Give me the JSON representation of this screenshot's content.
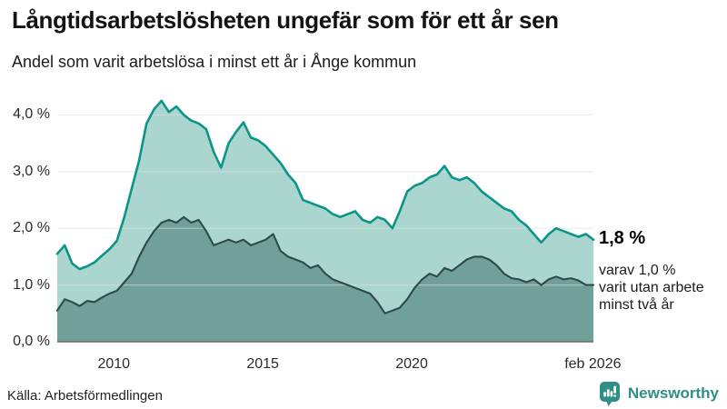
{
  "header": {
    "title": "Långtidsarbetslösheten ungefär som för ett år sen",
    "subtitle": "Andel som varit arbetslösa i minst ett år i Ånge kommun"
  },
  "annotation": {
    "value_label": "1,8 %",
    "sub_lines": [
      "varav 1,0 %",
      "varit utan arbete",
      "minst två år"
    ]
  },
  "footer": {
    "source": "Källa: Arbetsförmedlingen",
    "brand": "Newsworthy"
  },
  "colors": {
    "line_total": "#0d9488",
    "fill_total": "#aad6cf",
    "line_two_years": "#2e4b47",
    "fill_two_years": "#719f99",
    "gridline": "#dedede",
    "baseline": "#6b6b6b",
    "brand_teal": "#2f8f87",
    "text": "#1c1c1c"
  },
  "chart_data": {
    "type": "area",
    "title": "Långtidsarbetslösheten ungefär som för ett år sen",
    "subtitle": "Andel som varit arbetslösa i minst ett år i Ånge kommun",
    "x_unit": "decimal_year",
    "ylim": [
      0,
      4.36
    ],
    "xlim": [
      2008.1,
      2026.1
    ],
    "grid": "horizontal",
    "legend": "none",
    "y_ticks": [
      {
        "v": 0,
        "label": "0,0 %"
      },
      {
        "v": 1,
        "label": "1,0 %"
      },
      {
        "v": 2,
        "label": "2,0 %"
      },
      {
        "v": 3,
        "label": "3,0 %"
      },
      {
        "v": 4,
        "label": "4,0 %"
      }
    ],
    "x_ticks": [
      {
        "v": 2010,
        "label": "2010"
      },
      {
        "v": 2015,
        "label": "2015"
      },
      {
        "v": 2020,
        "label": "2020"
      },
      {
        "v": 2026.08,
        "label": "feb 2026"
      }
    ],
    "x": [
      2008.1,
      2008.35,
      2008.6,
      2008.85,
      2009.1,
      2009.35,
      2009.6,
      2009.85,
      2010.1,
      2010.35,
      2010.6,
      2010.85,
      2011.1,
      2011.35,
      2011.6,
      2011.85,
      2012.1,
      2012.35,
      2012.6,
      2012.85,
      2013.1,
      2013.35,
      2013.6,
      2013.85,
      2014.1,
      2014.35,
      2014.6,
      2014.85,
      2015.1,
      2015.35,
      2015.6,
      2015.85,
      2016.1,
      2016.35,
      2016.6,
      2016.85,
      2017.1,
      2017.35,
      2017.6,
      2017.85,
      2018.1,
      2018.35,
      2018.6,
      2018.85,
      2019.1,
      2019.35,
      2019.6,
      2019.85,
      2020.1,
      2020.35,
      2020.6,
      2020.85,
      2021.1,
      2021.35,
      2021.6,
      2021.85,
      2022.1,
      2022.35,
      2022.6,
      2022.85,
      2023.1,
      2023.35,
      2023.6,
      2023.85,
      2024.1,
      2024.35,
      2024.6,
      2024.85,
      2025.1,
      2025.35,
      2025.6,
      2025.85,
      2026.1
    ],
    "series": [
      {
        "name": "Arbetslösa minst ett år",
        "end_value_label": "1,8 %",
        "values": [
          1.55,
          1.7,
          1.38,
          1.28,
          1.33,
          1.4,
          1.52,
          1.63,
          1.78,
          2.2,
          2.7,
          3.2,
          3.85,
          4.1,
          4.25,
          4.05,
          4.15,
          4.0,
          3.9,
          3.85,
          3.75,
          3.35,
          3.07,
          3.5,
          3.7,
          3.87,
          3.6,
          3.55,
          3.45,
          3.3,
          3.15,
          2.95,
          2.8,
          2.5,
          2.45,
          2.4,
          2.35,
          2.25,
          2.2,
          2.25,
          2.3,
          2.15,
          2.1,
          2.2,
          2.15,
          2.0,
          2.3,
          2.65,
          2.75,
          2.8,
          2.9,
          2.95,
          3.1,
          2.9,
          2.85,
          2.9,
          2.8,
          2.65,
          2.55,
          2.45,
          2.35,
          2.3,
          2.15,
          2.05,
          1.9,
          1.75,
          1.9,
          2.0,
          1.95,
          1.9,
          1.85,
          1.9,
          1.8
        ]
      },
      {
        "name": "Arbetslösa minst två år",
        "end_value_label": "1,0 %",
        "values": [
          0.55,
          0.75,
          0.7,
          0.63,
          0.72,
          0.7,
          0.78,
          0.85,
          0.9,
          1.05,
          1.2,
          1.5,
          1.75,
          1.95,
          2.1,
          2.15,
          2.1,
          2.2,
          2.1,
          2.15,
          1.95,
          1.7,
          1.75,
          1.8,
          1.75,
          1.8,
          1.7,
          1.75,
          1.8,
          1.9,
          1.6,
          1.5,
          1.45,
          1.4,
          1.3,
          1.35,
          1.2,
          1.1,
          1.05,
          1.0,
          0.95,
          0.9,
          0.85,
          0.7,
          0.5,
          0.55,
          0.6,
          0.75,
          0.95,
          1.1,
          1.2,
          1.15,
          1.3,
          1.25,
          1.35,
          1.45,
          1.5,
          1.5,
          1.45,
          1.35,
          1.2,
          1.12,
          1.1,
          1.05,
          1.1,
          1.0,
          1.1,
          1.15,
          1.1,
          1.12,
          1.08,
          1.0,
          1.0
        ]
      }
    ]
  }
}
